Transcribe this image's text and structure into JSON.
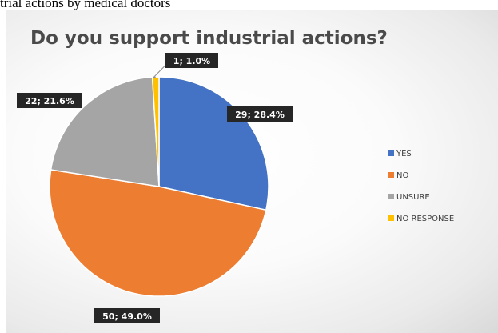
{
  "caption": "trial actions by medical doctors",
  "chart_data": {
    "type": "pie",
    "title": "Do you support industrial actions?",
    "categories": [
      "YES",
      "NO",
      "UNSURE",
      "NO RESPONSE"
    ],
    "values": [
      29,
      50,
      22,
      1
    ],
    "percentages": [
      28.4,
      49.0,
      21.6,
      1.0
    ],
    "data_labels": [
      "29; 28.4%",
      "50; 49.0%",
      "22; 21.6%",
      "1; 1.0%"
    ],
    "colors": [
      "#4472c4",
      "#ed7d31",
      "#a5a5a5",
      "#ffc000"
    ],
    "legend_position": "right",
    "start_angle": "12 o'clock, clockwise"
  }
}
